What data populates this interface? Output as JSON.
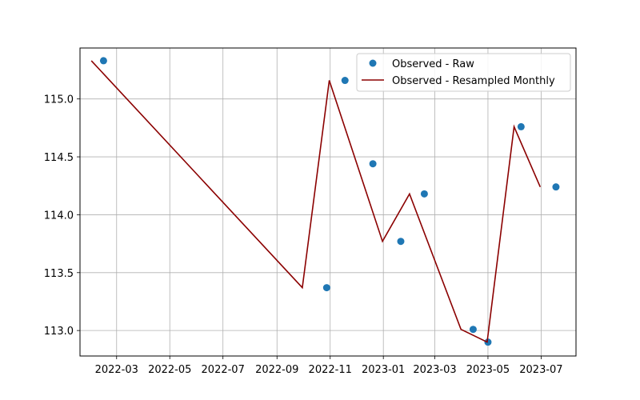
{
  "chart_data": {
    "type": "line",
    "title": "",
    "xlabel": "",
    "ylabel": "",
    "grid": true,
    "legend_placement": "top-right",
    "xlim": [
      "2022-01-18",
      "2023-08-10"
    ],
    "ylim": [
      112.78,
      115.44
    ],
    "x_ticks": [
      "2022-03",
      "2022-05",
      "2022-07",
      "2022-09",
      "2022-11",
      "2023-01",
      "2023-03",
      "2023-05",
      "2023-07"
    ],
    "y_ticks": [
      113.0,
      113.5,
      114.0,
      114.5,
      115.0
    ],
    "y_tick_labels": [
      "113.0",
      "113.5",
      "114.0",
      "114.5",
      "115.0"
    ],
    "series": [
      {
        "name": "Observed - Raw",
        "kind": "scatter",
        "color": "#1f77b4",
        "x": [
          "2022-02-14",
          "2022-10-28",
          "2022-11-18",
          "2022-12-20",
          "2023-01-21",
          "2023-02-17",
          "2023-04-14",
          "2023-05-01",
          "2023-06-08",
          "2023-07-18"
        ],
        "y": [
          115.33,
          113.37,
          115.16,
          114.44,
          113.77,
          114.18,
          113.01,
          112.9,
          114.76,
          114.24
        ]
      },
      {
        "name": "Observed - Resampled Monthly",
        "kind": "line",
        "color": "#8b0000",
        "x": [
          "2022-01-31",
          "2022-09-30",
          "2022-10-31",
          "2022-12-31",
          "2023-01-31",
          "2023-03-31",
          "2023-04-30",
          "2023-05-31",
          "2023-06-30"
        ],
        "y": [
          115.33,
          113.37,
          115.16,
          113.77,
          114.18,
          113.01,
          112.9,
          114.76,
          114.24
        ]
      }
    ]
  }
}
